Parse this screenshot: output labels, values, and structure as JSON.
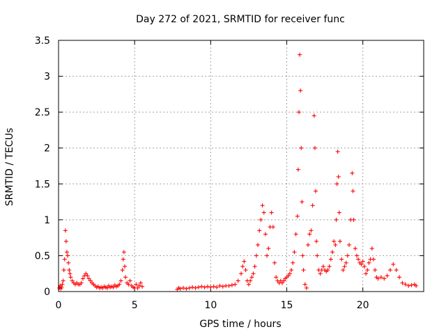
{
  "chart_data": {
    "type": "scatter",
    "title": "Day 272 of 2021, SRMTID for receiver func",
    "xlabel": "GPS time / hours",
    "ylabel": "SRMTID / TECUs",
    "xlim": [
      0,
      24
    ],
    "ylim": [
      0,
      3.5
    ],
    "x_ticks": [
      0,
      5,
      10,
      15,
      20
    ],
    "x_tick_labels": [
      "0",
      "5",
      "10",
      "15",
      "20"
    ],
    "y_ticks": [
      0,
      0.5,
      1,
      1.5,
      2,
      2.5,
      3,
      3.5
    ],
    "y_tick_labels": [
      "0",
      "0.5",
      "1",
      "1.5",
      "2",
      "2.5",
      "3",
      "3.5"
    ],
    "grid": true,
    "marker": "+",
    "series": [
      {
        "name": "SRMTID",
        "color": "#ff0000",
        "points": [
          [
            0.05,
            0.05
          ],
          [
            0.1,
            0.08
          ],
          [
            0.15,
            0.04
          ],
          [
            0.2,
            0.06
          ],
          [
            0.25,
            0.1
          ],
          [
            0.3,
            0.15
          ],
          [
            0.35,
            0.3
          ],
          [
            0.4,
            0.45
          ],
          [
            0.45,
            0.85
          ],
          [
            0.5,
            0.7
          ],
          [
            0.55,
            0.55
          ],
          [
            0.6,
            0.5
          ],
          [
            0.65,
            0.4
          ],
          [
            0.7,
            0.3
          ],
          [
            0.75,
            0.25
          ],
          [
            0.8,
            0.2
          ],
          [
            0.9,
            0.15
          ],
          [
            1.0,
            0.12
          ],
          [
            1.1,
            0.1
          ],
          [
            1.2,
            0.12
          ],
          [
            1.3,
            0.1
          ],
          [
            1.4,
            0.1
          ],
          [
            1.5,
            0.12
          ],
          [
            1.6,
            0.18
          ],
          [
            1.7,
            0.22
          ],
          [
            1.8,
            0.25
          ],
          [
            1.9,
            0.22
          ],
          [
            2.0,
            0.18
          ],
          [
            2.1,
            0.15
          ],
          [
            2.2,
            0.12
          ],
          [
            2.3,
            0.1
          ],
          [
            2.4,
            0.08
          ],
          [
            2.5,
            0.06
          ],
          [
            2.6,
            0.07
          ],
          [
            2.7,
            0.05
          ],
          [
            2.8,
            0.06
          ],
          [
            2.9,
            0.05
          ],
          [
            3.0,
            0.07
          ],
          [
            3.1,
            0.06
          ],
          [
            3.2,
            0.05
          ],
          [
            3.3,
            0.08
          ],
          [
            3.4,
            0.06
          ],
          [
            3.5,
            0.07
          ],
          [
            3.6,
            0.06
          ],
          [
            3.7,
            0.09
          ],
          [
            3.8,
            0.07
          ],
          [
            3.9,
            0.08
          ],
          [
            4.0,
            0.1
          ],
          [
            4.1,
            0.15
          ],
          [
            4.2,
            0.3
          ],
          [
            4.25,
            0.45
          ],
          [
            4.3,
            0.55
          ],
          [
            4.35,
            0.35
          ],
          [
            4.4,
            0.2
          ],
          [
            4.5,
            0.12
          ],
          [
            4.6,
            0.1
          ],
          [
            4.7,
            0.15
          ],
          [
            4.8,
            0.08
          ],
          [
            4.9,
            0.06
          ],
          [
            5.0,
            0.05
          ],
          [
            5.1,
            0.1
          ],
          [
            5.2,
            0.05
          ],
          [
            5.3,
            0.08
          ],
          [
            5.4,
            0.12
          ],
          [
            5.5,
            0.07
          ],
          [
            7.8,
            0.03
          ],
          [
            7.9,
            0.05
          ],
          [
            8.0,
            0.04
          ],
          [
            8.2,
            0.05
          ],
          [
            8.4,
            0.04
          ],
          [
            8.6,
            0.05
          ],
          [
            8.8,
            0.06
          ],
          [
            9.0,
            0.05
          ],
          [
            9.2,
            0.06
          ],
          [
            9.4,
            0.07
          ],
          [
            9.6,
            0.06
          ],
          [
            9.8,
            0.07
          ],
          [
            10.0,
            0.06
          ],
          [
            10.2,
            0.07
          ],
          [
            10.4,
            0.06
          ],
          [
            10.6,
            0.08
          ],
          [
            10.8,
            0.07
          ],
          [
            11.0,
            0.08
          ],
          [
            11.2,
            0.08
          ],
          [
            11.4,
            0.09
          ],
          [
            11.6,
            0.1
          ],
          [
            11.8,
            0.15
          ],
          [
            12.0,
            0.25
          ],
          [
            12.1,
            0.35
          ],
          [
            12.2,
            0.42
          ],
          [
            12.3,
            0.3
          ],
          [
            12.4,
            0.15
          ],
          [
            12.5,
            0.1
          ],
          [
            12.6,
            0.15
          ],
          [
            12.7,
            0.2
          ],
          [
            12.8,
            0.25
          ],
          [
            12.9,
            0.35
          ],
          [
            13.0,
            0.5
          ],
          [
            13.1,
            0.65
          ],
          [
            13.2,
            0.85
          ],
          [
            13.3,
            1.0
          ],
          [
            13.4,
            1.2
          ],
          [
            13.5,
            1.1
          ],
          [
            13.6,
            0.8
          ],
          [
            13.7,
            0.5
          ],
          [
            13.8,
            0.6
          ],
          [
            13.9,
            0.9
          ],
          [
            14.0,
            1.1
          ],
          [
            14.1,
            0.9
          ],
          [
            14.2,
            0.4
          ],
          [
            14.3,
            0.2
          ],
          [
            14.4,
            0.15
          ],
          [
            14.5,
            0.12
          ],
          [
            14.6,
            0.15
          ],
          [
            14.7,
            0.12
          ],
          [
            14.8,
            0.15
          ],
          [
            14.9,
            0.18
          ],
          [
            15.0,
            0.2
          ],
          [
            15.1,
            0.22
          ],
          [
            15.2,
            0.25
          ],
          [
            15.3,
            0.3
          ],
          [
            15.4,
            0.4
          ],
          [
            15.5,
            0.55
          ],
          [
            15.6,
            0.8
          ],
          [
            15.7,
            1.05
          ],
          [
            15.75,
            1.7
          ],
          [
            15.8,
            2.5
          ],
          [
            15.85,
            3.3
          ],
          [
            15.9,
            2.8
          ],
          [
            15.95,
            2.0
          ],
          [
            16.0,
            1.25
          ],
          [
            16.05,
            0.5
          ],
          [
            16.1,
            0.3
          ],
          [
            16.2,
            0.1
          ],
          [
            16.3,
            0.05
          ],
          [
            16.4,
            0.65
          ],
          [
            16.5,
            0.8
          ],
          [
            16.6,
            0.85
          ],
          [
            16.7,
            1.2
          ],
          [
            16.8,
            2.45
          ],
          [
            16.85,
            2.0
          ],
          [
            16.9,
            1.4
          ],
          [
            16.95,
            0.7
          ],
          [
            17.0,
            0.5
          ],
          [
            17.1,
            0.3
          ],
          [
            17.2,
            0.25
          ],
          [
            17.3,
            0.3
          ],
          [
            17.4,
            0.35
          ],
          [
            17.5,
            0.3
          ],
          [
            17.6,
            0.28
          ],
          [
            17.7,
            0.3
          ],
          [
            17.8,
            0.35
          ],
          [
            17.9,
            0.45
          ],
          [
            18.0,
            0.55
          ],
          [
            18.1,
            0.7
          ],
          [
            18.2,
            0.65
          ],
          [
            18.25,
            1.0
          ],
          [
            18.3,
            1.5
          ],
          [
            18.35,
            1.95
          ],
          [
            18.4,
            1.6
          ],
          [
            18.45,
            1.1
          ],
          [
            18.5,
            0.7
          ],
          [
            18.6,
            0.45
          ],
          [
            18.7,
            0.3
          ],
          [
            18.8,
            0.35
          ],
          [
            18.9,
            0.4
          ],
          [
            19.0,
            0.5
          ],
          [
            19.1,
            0.65
          ],
          [
            19.2,
            1.0
          ],
          [
            19.3,
            1.65
          ],
          [
            19.35,
            1.4
          ],
          [
            19.4,
            1.0
          ],
          [
            19.5,
            0.6
          ],
          [
            19.6,
            0.5
          ],
          [
            19.7,
            0.45
          ],
          [
            19.8,
            0.4
          ],
          [
            19.9,
            0.38
          ],
          [
            20.0,
            0.42
          ],
          [
            20.1,
            0.35
          ],
          [
            20.2,
            0.25
          ],
          [
            20.3,
            0.3
          ],
          [
            20.4,
            0.4
          ],
          [
            20.5,
            0.45
          ],
          [
            20.6,
            0.6
          ],
          [
            20.7,
            0.45
          ],
          [
            20.8,
            0.3
          ],
          [
            20.9,
            0.2
          ],
          [
            21.0,
            0.18
          ],
          [
            21.2,
            0.2
          ],
          [
            21.4,
            0.18
          ],
          [
            21.6,
            0.22
          ],
          [
            21.8,
            0.3
          ],
          [
            22.0,
            0.38
          ],
          [
            22.2,
            0.3
          ],
          [
            22.4,
            0.2
          ],
          [
            22.6,
            0.12
          ],
          [
            22.8,
            0.1
          ],
          [
            23.0,
            0.08
          ],
          [
            23.2,
            0.09
          ],
          [
            23.4,
            0.1
          ],
          [
            23.5,
            0.08
          ]
        ]
      }
    ]
  }
}
